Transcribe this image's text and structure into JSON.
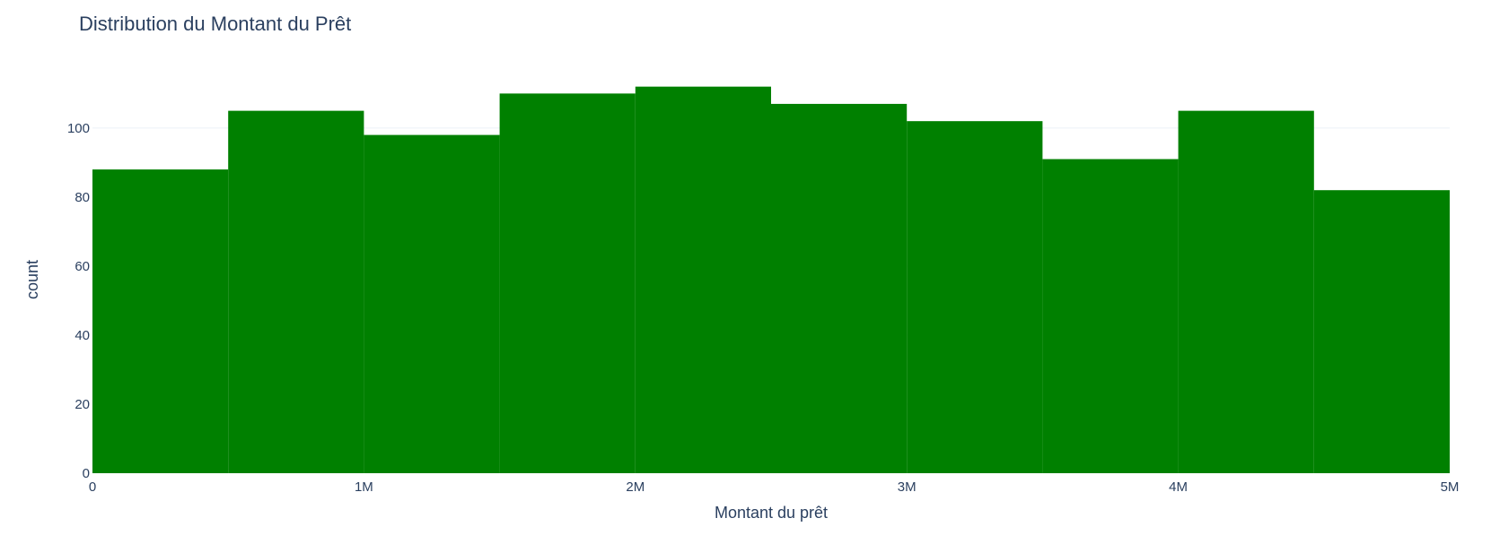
{
  "chart_data": {
    "type": "bar",
    "title": "Distribution du Montant du Prêt",
    "xlabel": "Montant du prêt",
    "ylabel": "count",
    "bin_edges": [
      0,
      500000,
      1000000,
      1500000,
      2000000,
      2500000,
      3000000,
      3500000,
      4000000,
      4500000,
      5000000
    ],
    "values": [
      88,
      105,
      98,
      110,
      112,
      107,
      102,
      91,
      105,
      82
    ],
    "xlim": [
      0,
      5000000
    ],
    "ylim": [
      0,
      121
    ],
    "x_ticks": [
      {
        "value": 0,
        "label": "0"
      },
      {
        "value": 1000000,
        "label": "1M"
      },
      {
        "value": 2000000,
        "label": "2M"
      },
      {
        "value": 3000000,
        "label": "3M"
      },
      {
        "value": 4000000,
        "label": "4M"
      },
      {
        "value": 5000000,
        "label": "5M"
      }
    ],
    "y_ticks": [
      {
        "value": 0,
        "label": "0"
      },
      {
        "value": 20,
        "label": "20"
      },
      {
        "value": 40,
        "label": "40"
      },
      {
        "value": 60,
        "label": "60"
      },
      {
        "value": 80,
        "label": "80"
      },
      {
        "value": 100,
        "label": "100"
      }
    ],
    "grid": true,
    "legend": "none",
    "bar_color": "#008000"
  }
}
